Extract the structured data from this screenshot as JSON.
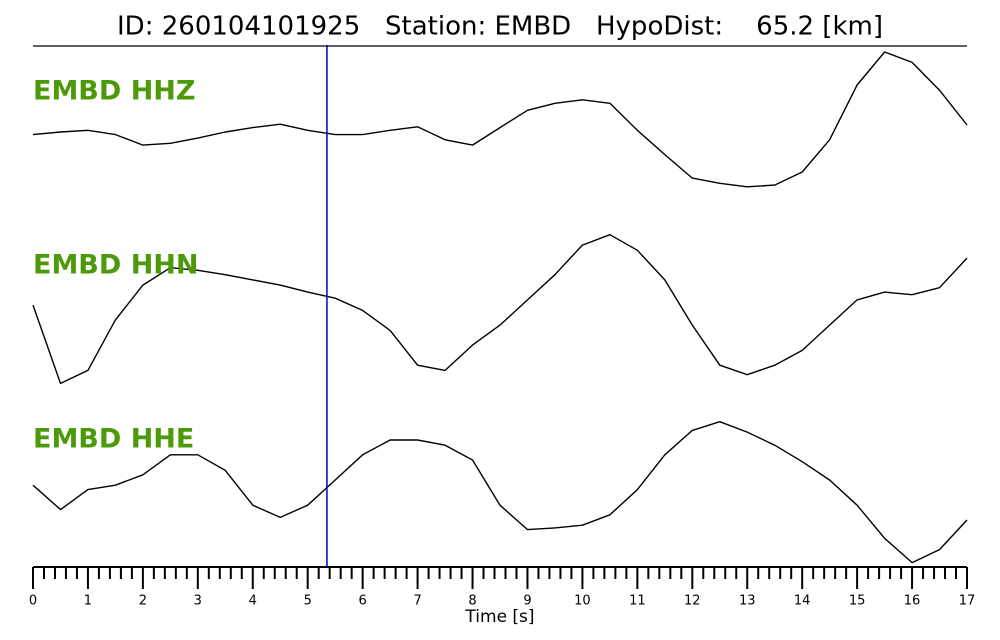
{
  "chart_data": {
    "type": "line",
    "title": "ID: 260104101925   Station: EMBD   HypoDist:    65.2 [km]",
    "xlabel": "Time [s]",
    "x": [
      0,
      0.5,
      1,
      1.5,
      2,
      2.5,
      3,
      3.5,
      4,
      4.5,
      5,
      5.5,
      6,
      6.5,
      7,
      7.5,
      8,
      8.5,
      9,
      9.5,
      10,
      10.5,
      11,
      11.5,
      12,
      12.5,
      13,
      13.5,
      14,
      14.5,
      15,
      15.5,
      16,
      16.5,
      17
    ],
    "series": [
      {
        "name": "EMBD HHZ",
        "color": "#000000",
        "label_color": "#4c9a0a",
        "values": [
          -0.03,
          0,
          0.02,
          -0.03,
          -0.15,
          -0.13,
          -0.07,
          0,
          0.05,
          0.09,
          0.02,
          -0.03,
          -0.03,
          0.02,
          0.06,
          -0.09,
          -0.15,
          0.05,
          0.25,
          0.33,
          0.37,
          0.33,
          0.02,
          -0.26,
          -0.53,
          -0.59,
          -0.63,
          -0.61,
          -0.46,
          -0.09,
          0.54,
          0.92,
          0.8,
          0.48,
          0.08
        ]
      },
      {
        "name": "EMBD HHN",
        "color": "#000000",
        "label_color": "#4c9a0a",
        "values": [
          0.01,
          -0.89,
          -0.74,
          -0.16,
          0.24,
          0.44,
          0.41,
          0.36,
          0.3,
          0.24,
          0.16,
          0.09,
          -0.05,
          -0.28,
          -0.68,
          -0.74,
          -0.45,
          -0.22,
          0.07,
          0.36,
          0.7,
          0.82,
          0.64,
          0.3,
          -0.22,
          -0.68,
          -0.79,
          -0.68,
          -0.51,
          -0.22,
          0.07,
          0.16,
          0.13,
          0.21,
          0.55
        ]
      },
      {
        "name": "EMBD HHE",
        "color": "#000000",
        "label_color": "#4c9a0a",
        "values": [
          -0.06,
          -0.34,
          -0.11,
          -0.06,
          0.06,
          0.29,
          0.29,
          0.11,
          -0.29,
          -0.43,
          -0.29,
          0,
          0.29,
          0.46,
          0.46,
          0.4,
          0.23,
          -0.29,
          -0.57,
          -0.55,
          -0.52,
          -0.4,
          -0.11,
          0.29,
          0.57,
          0.67,
          0.55,
          0.4,
          0.21,
          0,
          -0.29,
          -0.67,
          -0.95,
          -0.8,
          -0.46
        ]
      }
    ],
    "xlim": [
      0,
      17
    ],
    "ylim": [
      -1,
      1
    ],
    "xticks": [
      0,
      1,
      2,
      3,
      4,
      5,
      6,
      7,
      8,
      9,
      10,
      11,
      12,
      13,
      14,
      15,
      16,
      17
    ],
    "xminorticks": [
      0.2,
      0.4,
      0.6,
      0.8,
      1.2,
      1.4,
      1.6,
      1.8,
      2.2,
      2.4,
      2.6,
      2.8,
      3.2,
      3.4,
      3.6,
      3.8,
      4.2,
      4.4,
      4.6,
      4.8,
      5.2,
      5.4,
      5.6,
      5.8,
      6.2,
      6.4,
      6.6,
      6.8,
      7.2,
      7.4,
      7.6,
      7.8,
      8.2,
      8.4,
      8.6,
      8.8,
      9.2,
      9.4,
      9.6,
      9.8,
      10.2,
      10.4,
      10.6,
      10.8,
      11.2,
      11.4,
      11.6,
      11.8,
      12.2,
      12.4,
      12.6,
      12.8,
      13.2,
      13.4,
      13.6,
      13.8,
      14.2,
      14.4,
      14.6,
      14.8,
      15.2,
      15.4,
      15.6,
      15.8,
      16.2,
      16.4,
      16.6,
      16.8
    ],
    "pick": {
      "x": 5.35,
      "color": "#0000cc"
    }
  }
}
